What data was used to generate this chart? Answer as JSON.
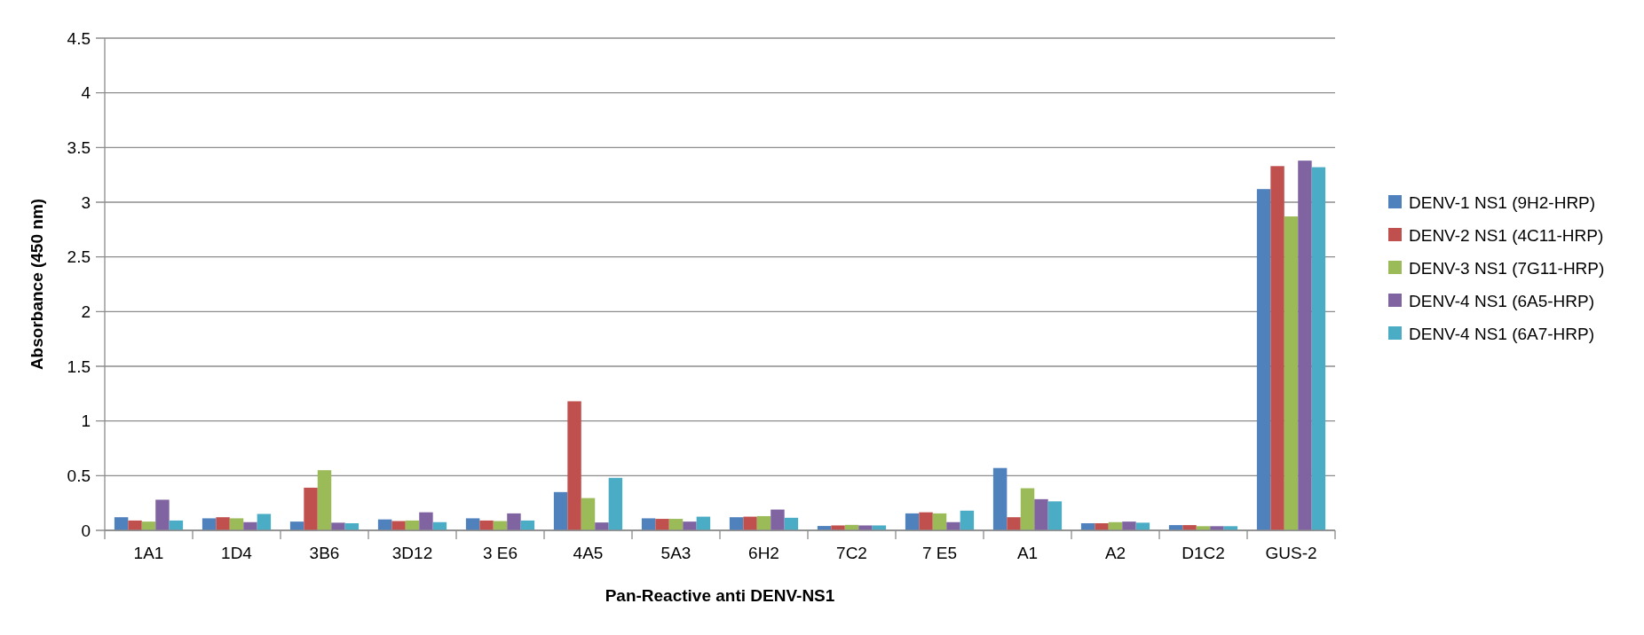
{
  "chart_data": {
    "type": "bar",
    "xlabel": "Pan-Reactive anti DENV-NS1",
    "ylabel": "Absorbance (450 nm)",
    "categories": [
      "1A1",
      "1D4",
      "3B6",
      "3D12",
      "3 E6",
      "4A5",
      "5A3",
      "6H2",
      "7C2",
      "7 E5",
      "A1",
      "A2",
      "D1C2",
      "GUS-2"
    ],
    "series": [
      {
        "name": "DENV-1 NS1 (9H2-HRP)",
        "color": "#4f81bd",
        "values": [
          0.12,
          0.11,
          0.08,
          0.1,
          0.11,
          0.35,
          0.11,
          0.12,
          0.04,
          0.155,
          0.57,
          0.065,
          0.048,
          3.12
        ]
      },
      {
        "name": "DENV-2 NS1 (4C11-HRP)",
        "color": "#c0504d",
        "values": [
          0.09,
          0.12,
          0.39,
          0.085,
          0.09,
          1.18,
          0.105,
          0.125,
          0.045,
          0.165,
          0.12,
          0.065,
          0.048,
          3.33
        ]
      },
      {
        "name": "DENV-3 NS1 (7G11-HRP)",
        "color": "#9bbb59",
        "values": [
          0.08,
          0.11,
          0.55,
          0.09,
          0.085,
          0.295,
          0.105,
          0.13,
          0.05,
          0.155,
          0.385,
          0.075,
          0.038,
          2.87
        ]
      },
      {
        "name": "DENV-4 NS1 (6A5-HRP)",
        "color": "#8064a2",
        "values": [
          0.28,
          0.075,
          0.07,
          0.165,
          0.155,
          0.072,
          0.08,
          0.19,
          0.045,
          0.075,
          0.285,
          0.08,
          0.038,
          3.38
        ]
      },
      {
        "name": "DENV-4 NS1 (6A7-HRP)",
        "color": "#4bacc6",
        "values": [
          0.09,
          0.15,
          0.065,
          0.075,
          0.09,
          0.48,
          0.125,
          0.115,
          0.045,
          0.18,
          0.265,
          0.07,
          0.038,
          3.32
        ]
      }
    ],
    "ylim": [
      0,
      4.5
    ],
    "yticks": [
      0,
      0.5,
      1,
      1.5,
      2,
      2.5,
      3,
      3.5,
      4,
      4.5
    ],
    "grid": "y",
    "legend": "right"
  }
}
